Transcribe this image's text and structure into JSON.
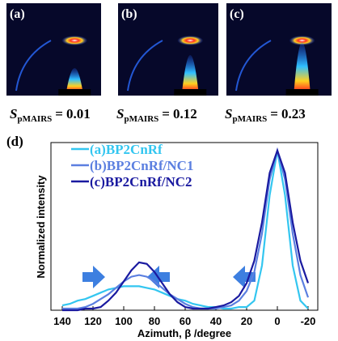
{
  "panels": [
    {
      "label": "(a)",
      "value": "0.01"
    },
    {
      "label": "(b)",
      "value": "0.12"
    },
    {
      "label": "(c)",
      "value": "0.23"
    }
  ],
  "equation": {
    "symbol": "S",
    "subscript": "pMAIRS",
    "relation": "="
  },
  "chart_data": {
    "type": "line",
    "panel_label": "(d)",
    "xlabel": "Azimuth, β /degree",
    "ylabel": "Normalized intensity",
    "x": [
      140,
      135,
      130,
      125,
      120,
      115,
      110,
      105,
      100,
      95,
      90,
      85,
      80,
      75,
      70,
      65,
      60,
      55,
      50,
      45,
      40,
      35,
      30,
      25,
      20,
      15,
      10,
      5,
      0,
      -5,
      -10,
      -15,
      -20
    ],
    "xlim": [
      140,
      -20
    ],
    "xticks": [
      140,
      120,
      100,
      80,
      60,
      40,
      20,
      0,
      -20
    ],
    "ylim": [
      0,
      1.05
    ],
    "legend": "upper left",
    "series": [
      {
        "name": "(a)BP2CnRf",
        "color": "#33c6f0",
        "values": [
          0.03,
          0.04,
          0.06,
          0.07,
          0.09,
          0.11,
          0.13,
          0.14,
          0.15,
          0.15,
          0.15,
          0.14,
          0.13,
          0.11,
          0.09,
          0.07,
          0.06,
          0.04,
          0.03,
          0.02,
          0.02,
          0.01,
          0.01,
          0.02,
          0.02,
          0.06,
          0.28,
          0.72,
          1,
          0.72,
          0.28,
          0.06,
          0.01
        ]
      },
      {
        "name": "(b)BP2CnRf/NC1",
        "color": "#5b7fe0",
        "values": [
          0.01,
          0.01,
          0.01,
          0.02,
          0.04,
          0.07,
          0.1,
          0.14,
          0.18,
          0.21,
          0.22,
          0.21,
          0.18,
          0.14,
          0.1,
          0.07,
          0.04,
          0.02,
          0.01,
          0.01,
          0.01,
          0.02,
          0.03,
          0.06,
          0.12,
          0.24,
          0.48,
          0.82,
          1,
          0.82,
          0.48,
          0.22,
          0.08
        ]
      },
      {
        "name": "(c)BP2CnRf/NC2",
        "color": "#1a1aa0",
        "values": [
          0,
          0,
          0,
          0.01,
          0.01,
          0.02,
          0.06,
          0.11,
          0.18,
          0.25,
          0.3,
          0.29,
          0.24,
          0.17,
          0.1,
          0.05,
          0.02,
          0.01,
          0.01,
          0.01,
          0.02,
          0.03,
          0.05,
          0.09,
          0.17,
          0.31,
          0.55,
          0.86,
          1,
          0.86,
          0.55,
          0.31,
          0.17
        ]
      }
    ]
  }
}
